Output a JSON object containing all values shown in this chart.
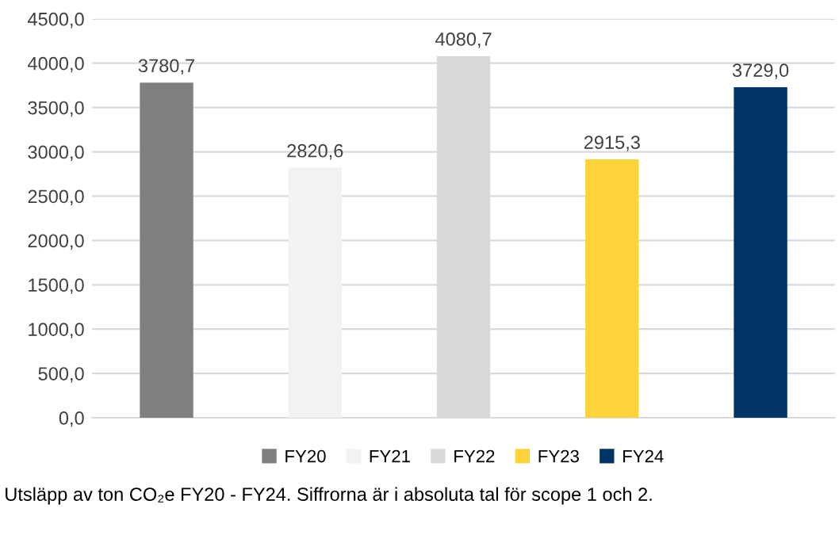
{
  "chart_data": {
    "type": "bar",
    "categories": [
      null
    ],
    "series": [
      {
        "name": "FY20",
        "color": "#7f7f7f",
        "values": [
          3780.7
        ],
        "value_labels": [
          "3780,7"
        ]
      },
      {
        "name": "FY21",
        "color": "#f2f2f2",
        "values": [
          2820.6
        ],
        "value_labels": [
          "2820,6"
        ]
      },
      {
        "name": "FY22",
        "color": "#d9d9d9",
        "values": [
          4080.7
        ],
        "value_labels": [
          "4080,7"
        ]
      },
      {
        "name": "FY23",
        "color": "#ffd43b",
        "values": [
          2915.3
        ],
        "value_labels": [
          "2915,3"
        ]
      },
      {
        "name": "FY24",
        "color": "#003366",
        "values": [
          3729.0
        ],
        "value_labels": [
          "3729,0"
        ]
      }
    ],
    "ylim": [
      0,
      4500
    ],
    "yticks": [
      {
        "value": 0,
        "label": "0,0"
      },
      {
        "value": 500,
        "label": "500,0"
      },
      {
        "value": 1000,
        "label": "1000,0"
      },
      {
        "value": 1500,
        "label": "1500,0"
      },
      {
        "value": 2000,
        "label": "2000,0"
      },
      {
        "value": 2500,
        "label": "2500,0"
      },
      {
        "value": 3000,
        "label": "3000,0"
      },
      {
        "value": 3500,
        "label": "3500,0"
      },
      {
        "value": 4000,
        "label": "4000,0"
      },
      {
        "value": 4500,
        "label": "4500,0"
      }
    ],
    "grid": "y",
    "legend": "bottom",
    "annotations": [
      "Utsläpp av ton CO₂e FY20 - FY24. Siffrorna är i absoluta tal för scope 1 och 2."
    ]
  }
}
